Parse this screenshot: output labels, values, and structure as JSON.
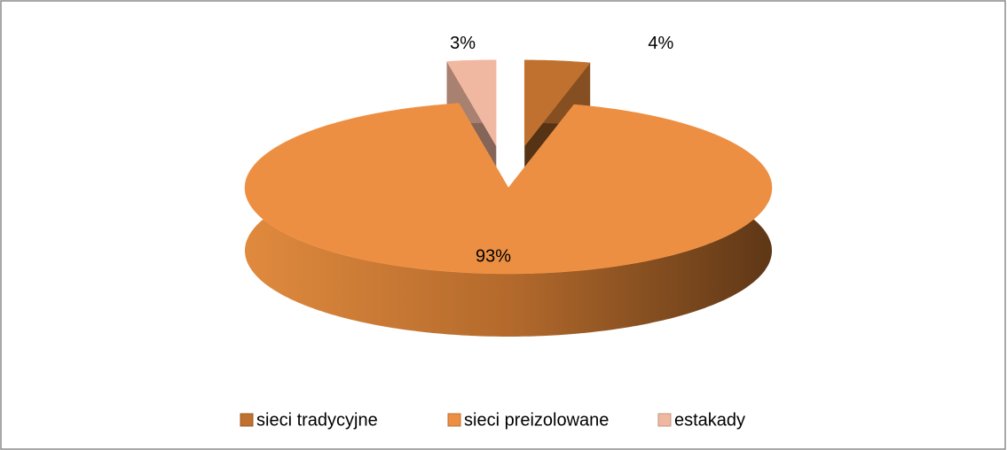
{
  "chart_data": {
    "type": "pie3d",
    "categories": [
      "sieci tradycyjne",
      "sieci preizolowane",
      "estakady"
    ],
    "values": [
      4,
      93,
      3
    ],
    "value_labels": [
      "4%",
      "93%",
      "3%"
    ],
    "colors": [
      "#c0712f",
      "#ec8f43",
      "#f0b8a0"
    ],
    "exploded": [
      true,
      false,
      true
    ],
    "legend": "bottom"
  }
}
